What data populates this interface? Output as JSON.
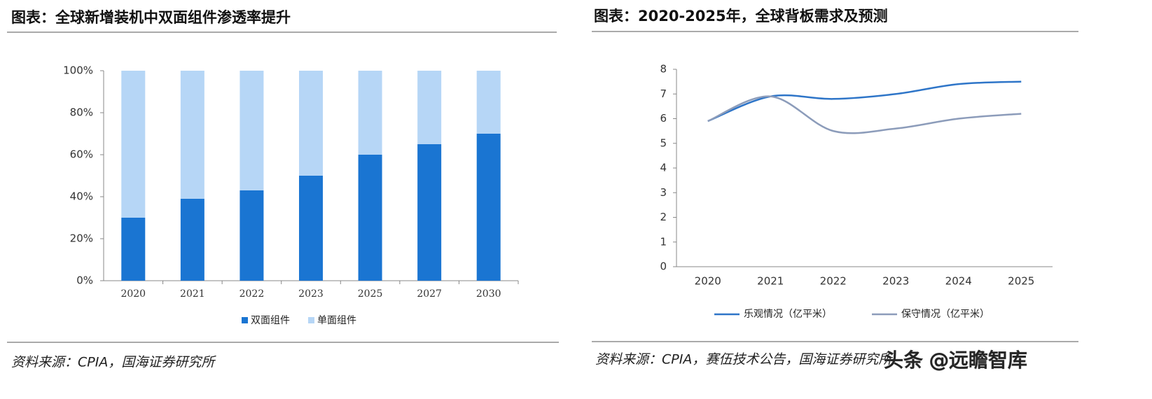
{
  "chart_data": [
    {
      "type": "bar",
      "stacked": true,
      "title": "图表：全球新增装机中双面组件渗透率提升",
      "source": "资料来源：CPIA，国海证券研究所",
      "categories": [
        "2020",
        "2021",
        "2022",
        "2023",
        "2025",
        "2027",
        "2030"
      ],
      "series": [
        {
          "name": "双面组件",
          "color": "#1a75d2",
          "values": [
            30,
            39,
            43,
            50,
            60,
            65,
            70
          ]
        },
        {
          "name": "单面组件",
          "color": "#b6d6f6",
          "values": [
            70,
            61,
            57,
            50,
            40,
            35,
            30
          ]
        }
      ],
      "ylim": [
        0,
        100
      ],
      "yticks": [
        {
          "value": 0,
          "label": "0%"
        },
        {
          "value": 20,
          "label": "20%"
        },
        {
          "value": 40,
          "label": "40%"
        },
        {
          "value": 60,
          "label": "60%"
        },
        {
          "value": 80,
          "label": "80%"
        },
        {
          "value": 100,
          "label": "100%"
        }
      ],
      "grid": false,
      "legend": "bottom"
    },
    {
      "type": "line",
      "smooth": true,
      "title": "图表：2020-2025年，全球背板需求及预测",
      "source": "资料来源：CPIA，赛伍技术公告，国海证券研究所",
      "categories": [
        "2020",
        "2021",
        "2022",
        "2023",
        "2024",
        "2025"
      ],
      "series": [
        {
          "name": "乐观情况（亿平米）",
          "color": "#2e75c8",
          "values": [
            5.9,
            6.9,
            6.8,
            7.0,
            7.4,
            7.5
          ]
        },
        {
          "name": "保守情况（亿平米）",
          "color": "#8c9cba",
          "values": [
            5.9,
            6.9,
            5.5,
            5.6,
            6.0,
            6.2
          ]
        }
      ],
      "ylim": [
        0,
        8
      ],
      "yticks": [
        0,
        1,
        2,
        3,
        4,
        5,
        6,
        7,
        8
      ],
      "grid": false,
      "legend": "bottom"
    }
  ],
  "watermark": "头条 @远瞻智库"
}
